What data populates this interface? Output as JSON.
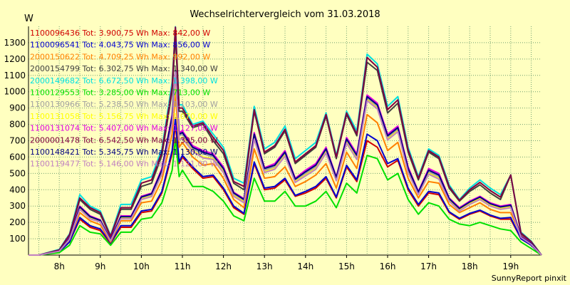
{
  "chart_data": {
    "type": "line",
    "title": "Wechselrichtervergleich vom 31.03.2018",
    "ylabel": "W",
    "credit": "SunnyReport pinxit",
    "ylim": [
      0,
      1400
    ],
    "xlim": [
      7.25,
      19.75
    ],
    "yticks": [
      100,
      200,
      300,
      400,
      500,
      600,
      700,
      800,
      900,
      1000,
      1100,
      1200,
      1300
    ],
    "xticks": [
      {
        "value": 8,
        "label": "8h"
      },
      {
        "value": 9,
        "label": "9h"
      },
      {
        "value": 10,
        "label": "10h"
      },
      {
        "value": 11,
        "label": "11h"
      },
      {
        "value": 12,
        "label": "12h"
      },
      {
        "value": 13,
        "label": "13h"
      },
      {
        "value": 14,
        "label": "14h"
      },
      {
        "value": 15,
        "label": "15h"
      },
      {
        "value": 16,
        "label": "16h"
      },
      {
        "value": 17,
        "label": "17h"
      },
      {
        "value": 18,
        "label": "18h"
      },
      {
        "value": 19,
        "label": "19h"
      }
    ],
    "grid": true,
    "legend_position": "top-left",
    "x": [
      7.25,
      7.5,
      7.75,
      8.0,
      8.25,
      8.5,
      8.75,
      9.0,
      9.25,
      9.5,
      9.75,
      10.0,
      10.25,
      10.5,
      10.75,
      10.83,
      10.92,
      11.0,
      11.25,
      11.5,
      11.75,
      12.0,
      12.25,
      12.5,
      12.75,
      13.0,
      13.25,
      13.5,
      13.75,
      14.0,
      14.25,
      14.5,
      14.75,
      15.0,
      15.25,
      15.5,
      15.75,
      16.0,
      16.25,
      16.5,
      16.75,
      17.0,
      17.25,
      17.5,
      17.75,
      18.0,
      18.25,
      18.5,
      18.75,
      19.0,
      19.25,
      19.5,
      19.75
    ],
    "series": [
      {
        "name": "1100096436 Tot: 3.900,75 Wh Max: 842,00 W",
        "color": "#d00000",
        "values": [
          0,
          0,
          10,
          20,
          80,
          220,
          170,
          150,
          70,
          170,
          170,
          260,
          270,
          380,
          620,
          800,
          560,
          600,
          530,
          470,
          480,
          400,
          290,
          250,
          560,
          400,
          410,
          460,
          360,
          380,
          410,
          470,
          350,
          540,
          450,
          700,
          660,
          540,
          580,
          400,
          300,
          380,
          370,
          260,
          220,
          250,
          270,
          240,
          220,
          220,
          100,
          60,
          0
        ]
      },
      {
        "name": "1100096541 Tot: 4.043,75 Wh Max: 856,00 W",
        "color": "#0000d0",
        "values": [
          0,
          0,
          10,
          20,
          80,
          230,
          180,
          160,
          75,
          180,
          180,
          270,
          280,
          390,
          640,
          840,
          570,
          610,
          540,
          480,
          490,
          410,
          300,
          255,
          570,
          410,
          420,
          470,
          365,
          390,
          420,
          480,
          355,
          550,
          460,
          740,
          700,
          560,
          590,
          410,
          310,
          390,
          380,
          265,
          225,
          255,
          275,
          245,
          225,
          230,
          100,
          60,
          0
        ]
      },
      {
        "name": "2000150622 Tot: 4.709,25 Wh Max: 992,00 W",
        "color": "#ff8000",
        "values": [
          0,
          0,
          12,
          25,
          95,
          260,
          210,
          185,
          80,
          210,
          210,
          320,
          330,
          460,
          740,
          990,
          660,
          690,
          600,
          550,
          560,
          470,
          340,
          290,
          650,
          470,
          480,
          540,
          420,
          450,
          490,
          560,
          410,
          630,
          530,
          860,
          810,
          640,
          690,
          470,
          350,
          450,
          440,
          310,
          260,
          290,
          320,
          280,
          260,
          260,
          120,
          70,
          0
        ]
      },
      {
        "name": "2000154799 Tot: 6.302,75 Wh Max: 1.340,00 W",
        "color": "#404040",
        "values": [
          0,
          0,
          15,
          30,
          120,
          340,
          280,
          250,
          110,
          280,
          280,
          420,
          440,
          610,
          1000,
          1340,
          880,
          880,
          780,
          800,
          700,
          620,
          440,
          400,
          880,
          620,
          660,
          760,
          560,
          610,
          660,
          850,
          590,
          860,
          730,
          1180,
          1130,
          870,
          930,
          630,
          460,
          630,
          590,
          410,
          330,
          390,
          430,
          380,
          340,
          490,
          130,
          80,
          0
        ]
      },
      {
        "name": "2000149682 Tot: 6.672,50 Wh Max: 1.398,00 W",
        "color": "#00e0e0",
        "values": [
          0,
          0,
          18,
          35,
          130,
          370,
          300,
          270,
          120,
          310,
          310,
          460,
          480,
          650,
          1060,
          1398,
          920,
          920,
          800,
          820,
          740,
          660,
          470,
          440,
          910,
          650,
          690,
          790,
          590,
          640,
          690,
          870,
          610,
          880,
          760,
          1230,
          1170,
          910,
          970,
          660,
          480,
          650,
          610,
          430,
          340,
          410,
          460,
          410,
          370,
          490,
          140,
          85,
          0
        ]
      },
      {
        "name": "1100129553 Tot: 3.285,00 Wh Max: 713,00 W",
        "color": "#00e000",
        "values": [
          0,
          0,
          8,
          15,
          60,
          180,
          140,
          130,
          60,
          140,
          140,
          220,
          230,
          320,
          520,
          713,
          480,
          520,
          420,
          420,
          390,
          330,
          240,
          210,
          470,
          330,
          330,
          390,
          300,
          300,
          330,
          390,
          290,
          440,
          380,
          610,
          590,
          460,
          500,
          340,
          250,
          320,
          300,
          220,
          190,
          180,
          200,
          180,
          160,
          150,
          80,
          40,
          0
        ]
      },
      {
        "name": "1100130966 Tot: 5.238,50 Wh Max: 1.103,00 W",
        "color": "#a0a0a0",
        "values": [
          0,
          0,
          12,
          25,
          100,
          290,
          230,
          210,
          90,
          230,
          230,
          350,
          370,
          510,
          830,
          1103,
          730,
          740,
          650,
          620,
          600,
          520,
          370,
          330,
          730,
          520,
          540,
          620,
          460,
          500,
          540,
          640,
          470,
          700,
          600,
          960,
          910,
          720,
          770,
          520,
          380,
          510,
          480,
          340,
          280,
          320,
          350,
          310,
          290,
          300,
          110,
          70,
          0
        ]
      },
      {
        "name": "1100131058 Tot: 5.156,75 Wh Max: 1.070,00 W",
        "color": "#ffff00",
        "values": [
          0,
          0,
          12,
          24,
          98,
          285,
          225,
          205,
          88,
          225,
          225,
          345,
          360,
          500,
          810,
          1070,
          710,
          720,
          640,
          600,
          590,
          510,
          365,
          325,
          715,
          510,
          530,
          610,
          450,
          490,
          530,
          630,
          460,
          690,
          590,
          950,
          900,
          710,
          760,
          510,
          375,
          500,
          470,
          335,
          275,
          315,
          345,
          305,
          285,
          295,
          110,
          68,
          0
        ]
      },
      {
        "name": "1100131074 Tot: 5.407,00 Wh Max: 1.127,00 W",
        "color": "#e000e0",
        "values": [
          0,
          0,
          13,
          26,
          105,
          300,
          240,
          215,
          95,
          240,
          240,
          360,
          380,
          530,
          860,
          1127,
          750,
          760,
          670,
          640,
          620,
          540,
          385,
          345,
          750,
          535,
          560,
          640,
          470,
          520,
          560,
          660,
          480,
          720,
          620,
          980,
          930,
          740,
          790,
          540,
          390,
          530,
          500,
          350,
          290,
          330,
          360,
          320,
          300,
          310,
          115,
          72,
          0
        ]
      },
      {
        "name": "2000001478 Tot: 6.542,50 Wh Max: 1.395,00 W",
        "color": "#800040",
        "values": [
          0,
          0,
          16,
          32,
          125,
          350,
          290,
          260,
          115,
          290,
          290,
          440,
          460,
          630,
          1030,
          1395,
          900,
          900,
          790,
          810,
          720,
          640,
          450,
          420,
          890,
          630,
          670,
          770,
          570,
          620,
          670,
          860,
          600,
          870,
          740,
          1210,
          1150,
          890,
          950,
          645,
          470,
          640,
          600,
          420,
          335,
          400,
          445,
          395,
          355,
          490,
          135,
          82,
          0
        ]
      },
      {
        "name": "1100148421 Tot: 5.345,75 Wh Max: 1.130,00 W",
        "color": "#000080",
        "values": [
          0,
          0,
          12,
          25,
          102,
          295,
          235,
          212,
          92,
          235,
          235,
          355,
          375,
          520,
          850,
          1130,
          740,
          750,
          660,
          630,
          610,
          530,
          380,
          340,
          740,
          530,
          550,
          630,
          465,
          510,
          550,
          650,
          475,
          710,
          610,
          970,
          920,
          730,
          780,
          530,
          385,
          520,
          490,
          345,
          285,
          325,
          355,
          315,
          295,
          305,
          112,
          70,
          0
        ]
      },
      {
        "name": "1100119477 Tot: 5.146,00 Wh Max: 1.121,00 W",
        "color": "#c080c0",
        "values": [
          0,
          0,
          12,
          24,
          97,
          280,
          222,
          203,
          87,
          222,
          222,
          340,
          358,
          495,
          805,
          1121,
          705,
          715,
          635,
          595,
          585,
          505,
          360,
          320,
          710,
          505,
          525,
          605,
          445,
          485,
          525,
          625,
          455,
          685,
          585,
          945,
          895,
          705,
          755,
          505,
          370,
          495,
          465,
          330,
          270,
          310,
          340,
          300,
          280,
          290,
          108,
          66,
          0
        ]
      }
    ]
  }
}
